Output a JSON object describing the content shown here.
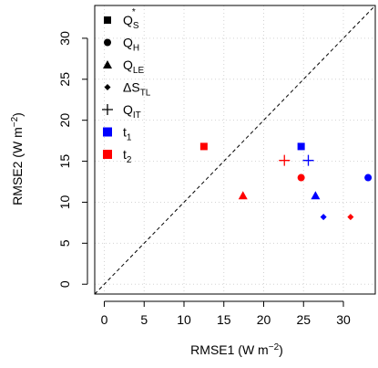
{
  "chart_data": {
    "type": "scatter",
    "title": "",
    "xlabel": "RMSE1 (W m",
    "xlabel_sup": "−2",
    "xlabel_tail": ")",
    "ylabel": "RMSE2 (W m",
    "ylabel_sup": "−2",
    "ylabel_tail": ")",
    "xlim": [
      -1.2,
      34
    ],
    "ylim": [
      -1.2,
      34
    ],
    "xticks": [
      0,
      5,
      10,
      15,
      20,
      25,
      30
    ],
    "yticks": [
      0,
      5,
      10,
      15,
      20,
      25,
      30
    ],
    "grid": true,
    "diagonal_reference": true,
    "legend_placement": "top-left",
    "colors": {
      "t1": "#0000ff",
      "t2": "#ff0000",
      "text": "#000000"
    },
    "legend": [
      {
        "symbol": "square",
        "base": "Q",
        "sub": "S",
        "sup": "*",
        "color": "#000000"
      },
      {
        "symbol": "circle",
        "base": "Q",
        "sub": "H",
        "sup": "",
        "color": "#000000"
      },
      {
        "symbol": "triangle",
        "base": "Q",
        "sub": "LE",
        "sup": "",
        "color": "#000000"
      },
      {
        "symbol": "diamond",
        "base": "ΔS",
        "sub": "TL",
        "sup": "",
        "color": "#000000"
      },
      {
        "symbol": "plus",
        "base": "Q",
        "sub": "IT",
        "sup": "",
        "color": "#000000"
      },
      {
        "symbol": "bigsquare",
        "base": "t",
        "sub": "1",
        "sup": "",
        "color": "#0000ff"
      },
      {
        "symbol": "bigsquare",
        "base": "t",
        "sub": "2",
        "sup": "",
        "color": "#ff0000"
      }
    ],
    "series": [
      {
        "time": "t1",
        "color": "#0000ff",
        "points": [
          {
            "variable": "Q_S*",
            "symbol": "square",
            "x": 24.7,
            "y": 16.8
          },
          {
            "variable": "Q_H",
            "symbol": "circle",
            "x": 33.1,
            "y": 13.0
          },
          {
            "variable": "Q_LE",
            "symbol": "triangle",
            "x": 26.5,
            "y": 10.8
          },
          {
            "variable": "ΔS_TL",
            "symbol": "diamond",
            "x": 27.5,
            "y": 8.2
          },
          {
            "variable": "Q_IT",
            "symbol": "plus",
            "x": 25.6,
            "y": 15.1
          }
        ]
      },
      {
        "time": "t2",
        "color": "#ff0000",
        "points": [
          {
            "variable": "Q_S*",
            "symbol": "square",
            "x": 12.5,
            "y": 16.8
          },
          {
            "variable": "Q_H",
            "symbol": "circle",
            "x": 24.7,
            "y": 13.0
          },
          {
            "variable": "Q_LE",
            "symbol": "triangle",
            "x": 17.4,
            "y": 10.8
          },
          {
            "variable": "ΔS_TL",
            "symbol": "diamond",
            "x": 30.9,
            "y": 8.2
          },
          {
            "variable": "Q_IT",
            "symbol": "plus",
            "x": 22.6,
            "y": 15.1
          }
        ]
      }
    ]
  }
}
